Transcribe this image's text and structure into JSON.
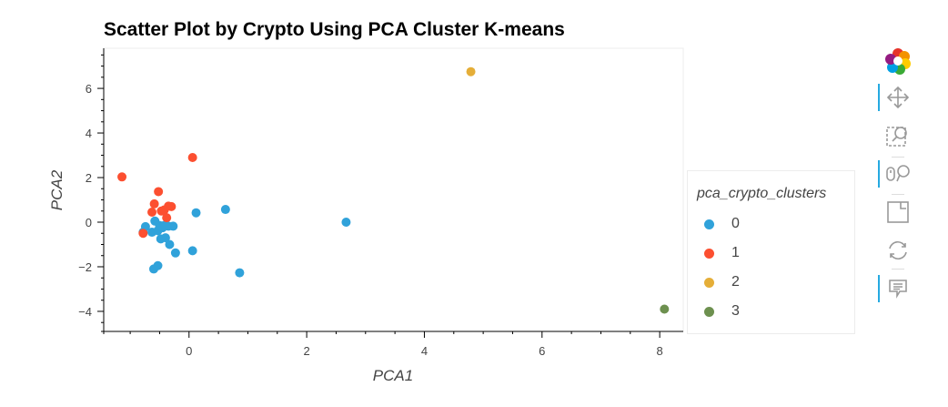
{
  "chart_data": {
    "type": "scatter",
    "title": "Scatter Plot by Crypto Using PCA Cluster K-means",
    "xlabel": "PCA1",
    "ylabel": "PCA2",
    "xlim": [
      -1.45,
      8.4
    ],
    "ylim": [
      -4.9,
      7.8
    ],
    "x_ticks": [
      0,
      2,
      4,
      6,
      8
    ],
    "y_ticks": [
      -4,
      -2,
      0,
      2,
      4,
      6
    ],
    "grid": false,
    "legend_title": "pca_crypto_clusters",
    "legend_position": "right",
    "series": [
      {
        "name": "0",
        "color": "#30a2da",
        "points": [
          [
            -0.78,
            -0.45
          ],
          [
            -0.74,
            -0.2
          ],
          [
            -0.63,
            -0.45
          ],
          [
            -0.58,
            0.05
          ],
          [
            -0.53,
            -0.38
          ],
          [
            -0.5,
            -0.15
          ],
          [
            -0.45,
            -0.25
          ],
          [
            -0.42,
            -0.15
          ],
          [
            -0.48,
            -0.75
          ],
          [
            -0.4,
            -0.7
          ],
          [
            -0.35,
            -0.18
          ],
          [
            -0.33,
            -1.0
          ],
          [
            -0.27,
            -0.18
          ],
          [
            -0.6,
            -2.1
          ],
          [
            -0.53,
            -1.95
          ],
          [
            -0.23,
            -1.38
          ],
          [
            0.06,
            -1.28
          ],
          [
            0.12,
            0.42
          ],
          [
            0.62,
            0.57
          ],
          [
            0.86,
            -2.27
          ],
          [
            2.67,
            0.0
          ]
        ]
      },
      {
        "name": "1",
        "color": "#fc4f30",
        "points": [
          [
            -1.14,
            2.03
          ],
          [
            -0.78,
            -0.5
          ],
          [
            -0.63,
            0.45
          ],
          [
            -0.59,
            0.82
          ],
          [
            -0.52,
            1.37
          ],
          [
            -0.47,
            0.5
          ],
          [
            -0.42,
            0.55
          ],
          [
            -0.38,
            0.2
          ],
          [
            -0.35,
            0.72
          ],
          [
            -0.3,
            0.7
          ],
          [
            0.06,
            2.9
          ]
        ]
      },
      {
        "name": "2",
        "color": "#e5ae38",
        "points": [
          [
            4.79,
            6.75
          ]
        ]
      },
      {
        "name": "3",
        "color": "#6d904f",
        "points": [
          [
            8.08,
            -3.9
          ]
        ]
      }
    ]
  },
  "toolbar": {
    "items": [
      {
        "name": "bokeh-logo-icon",
        "active": false
      },
      {
        "name": "pan-icon",
        "active": true
      },
      {
        "name": "box-zoom-icon",
        "active": false
      },
      {
        "name": "wheel-zoom-icon",
        "active": true
      },
      {
        "name": "save-icon",
        "active": false
      },
      {
        "name": "reset-icon",
        "active": false
      },
      {
        "name": "hover-icon",
        "active": true
      }
    ]
  }
}
